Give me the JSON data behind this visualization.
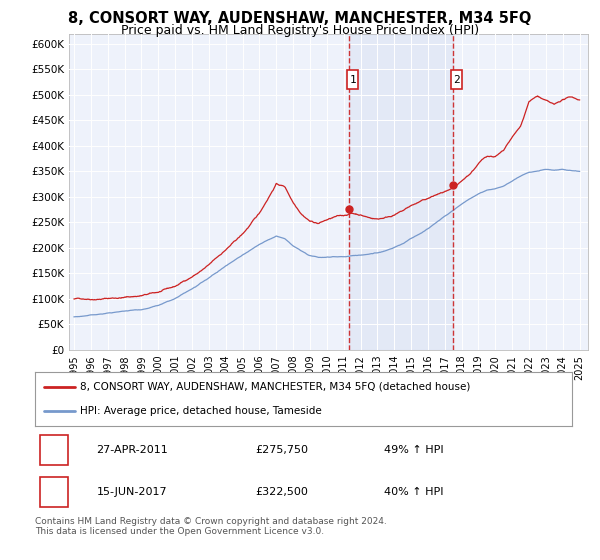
{
  "title": "8, CONSORT WAY, AUDENSHAW, MANCHESTER, M34 5FQ",
  "subtitle": "Price paid vs. HM Land Registry's House Price Index (HPI)",
  "title_fontsize": 10.5,
  "subtitle_fontsize": 9,
  "ylim": [
    0,
    620000
  ],
  "yticks": [
    0,
    50000,
    100000,
    150000,
    200000,
    250000,
    300000,
    350000,
    400000,
    450000,
    500000,
    550000,
    600000
  ],
  "ytick_labels": [
    "£0",
    "£50K",
    "£100K",
    "£150K",
    "£200K",
    "£250K",
    "£300K",
    "£350K",
    "£400K",
    "£450K",
    "£500K",
    "£550K",
    "£600K"
  ],
  "xlim_start": 1994.7,
  "xlim_end": 2025.5,
  "xticks": [
    1995,
    1996,
    1997,
    1998,
    1999,
    2000,
    2001,
    2002,
    2003,
    2004,
    2005,
    2006,
    2007,
    2008,
    2009,
    2010,
    2011,
    2012,
    2013,
    2014,
    2015,
    2016,
    2017,
    2018,
    2019,
    2020,
    2021,
    2022,
    2023,
    2024,
    2025
  ],
  "background_color": "#ffffff",
  "plot_background": "#eef2fb",
  "grid_color": "#ffffff",
  "red_line_color": "#cc2222",
  "blue_line_color": "#7799cc",
  "marker1_x": 2011.32,
  "marker1_y": 275750,
  "marker2_x": 2017.46,
  "marker2_y": 322500,
  "marker1_label": "1",
  "marker2_label": "2",
  "marker1_date": "27-APR-2011",
  "marker1_price": "£275,750",
  "marker1_hpi": "49% ↑ HPI",
  "marker2_date": "15-JUN-2017",
  "marker2_price": "£322,500",
  "marker2_hpi": "40% ↑ HPI",
  "legend_line1": "8, CONSORT WAY, AUDENSHAW, MANCHESTER, M34 5FQ (detached house)",
  "legend_line2": "HPI: Average price, detached house, Tameside",
  "footer": "Contains HM Land Registry data © Crown copyright and database right 2024.\nThis data is licensed under the Open Government Licence v3.0.",
  "red_line_x": [
    1995.0,
    1996.0,
    1997.0,
    1998.0,
    1999.0,
    2000.0,
    2001.0,
    2002.0,
    2003.0,
    2004.0,
    2005.0,
    2006.0,
    2007.0,
    2007.5,
    2008.0,
    2008.5,
    2009.0,
    2009.5,
    2010.0,
    2010.5,
    2011.0,
    2011.32,
    2011.5,
    2012.0,
    2012.5,
    2013.0,
    2013.5,
    2014.0,
    2014.5,
    2015.0,
    2015.5,
    2016.0,
    2016.5,
    2017.0,
    2017.46,
    2017.5,
    2018.0,
    2018.5,
    2019.0,
    2019.5,
    2020.0,
    2020.5,
    2021.0,
    2021.5,
    2022.0,
    2022.5,
    2023.0,
    2023.5,
    2024.0,
    2024.5,
    2025.0
  ],
  "red_line_y": [
    100000,
    102000,
    105000,
    108000,
    112000,
    118000,
    128000,
    148000,
    170000,
    200000,
    230000,
    270000,
    330000,
    325000,
    295000,
    275000,
    262000,
    258000,
    265000,
    270000,
    272000,
    275750,
    277000,
    275000,
    270000,
    268000,
    272000,
    278000,
    285000,
    295000,
    302000,
    308000,
    315000,
    320000,
    322500,
    323000,
    335000,
    350000,
    370000,
    385000,
    385000,
    395000,
    420000,
    440000,
    490000,
    500000,
    490000,
    480000,
    490000,
    495000,
    490000
  ],
  "blue_line_x": [
    1995.0,
    1996.0,
    1997.0,
    1998.0,
    1999.0,
    2000.0,
    2001.0,
    2002.0,
    2003.0,
    2004.0,
    2005.0,
    2006.0,
    2007.0,
    2007.5,
    2008.0,
    2008.5,
    2009.0,
    2009.5,
    2010.0,
    2010.5,
    2011.0,
    2011.5,
    2012.0,
    2012.5,
    2013.0,
    2013.5,
    2014.0,
    2014.5,
    2015.0,
    2015.5,
    2016.0,
    2016.5,
    2017.0,
    2017.5,
    2018.0,
    2018.5,
    2019.0,
    2019.5,
    2020.0,
    2020.5,
    2021.0,
    2021.5,
    2022.0,
    2022.5,
    2023.0,
    2023.5,
    2024.0,
    2024.5,
    2025.0
  ],
  "blue_line_y": [
    65000,
    68000,
    72000,
    76000,
    80000,
    88000,
    100000,
    118000,
    138000,
    162000,
    185000,
    205000,
    220000,
    215000,
    200000,
    190000,
    180000,
    177000,
    178000,
    180000,
    180000,
    182000,
    183000,
    185000,
    188000,
    192000,
    198000,
    205000,
    215000,
    225000,
    235000,
    248000,
    260000,
    272000,
    285000,
    295000,
    305000,
    312000,
    315000,
    320000,
    330000,
    340000,
    348000,
    350000,
    352000,
    350000,
    352000,
    350000,
    350000
  ]
}
